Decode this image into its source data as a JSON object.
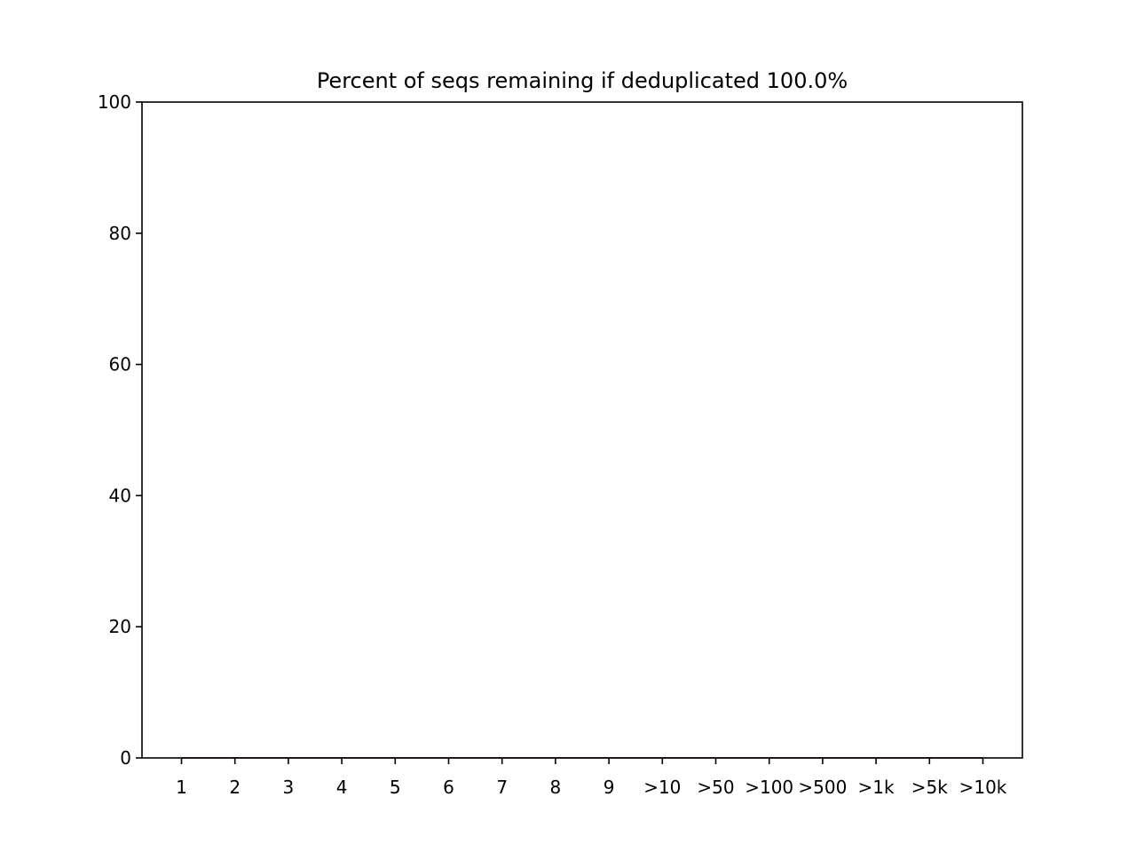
{
  "chart_data": {
    "type": "line",
    "title": "Percent of seqs remaining if deduplicated 100.0%",
    "xlabel": "",
    "ylabel": "",
    "categories": [
      "1",
      "2",
      "3",
      "4",
      "5",
      "6",
      "7",
      "8",
      "9",
      ">10",
      ">50",
      ">100",
      ">500",
      ">1k",
      ">5k",
      ">10k"
    ],
    "ylim": [
      0,
      100
    ],
    "yticks": [
      0,
      20,
      40,
      60,
      80,
      100
    ],
    "grid": false,
    "series": [
      {
        "color": "#1f77b4",
        "values": [
          0,
          0,
          0,
          0,
          0,
          0,
          0,
          0,
          0,
          0,
          0,
          0,
          0,
          0,
          0,
          0
        ]
      },
      {
        "color": "#d62728",
        "values": [
          0,
          0,
          0,
          0,
          0,
          0,
          0,
          0,
          0,
          0,
          0,
          0,
          0,
          0,
          0,
          0
        ]
      }
    ]
  }
}
